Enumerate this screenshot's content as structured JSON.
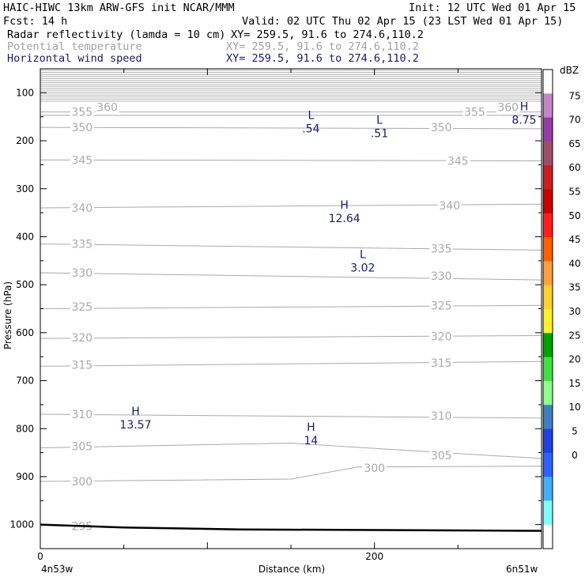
{
  "header": {
    "title_left": "HAIC-HIWC 13km ARW-GFS init   NCAR/MMM",
    "init": "Init: 12 UTC Wed 01 Apr 15",
    "fcst": "Fcst:    14 h",
    "valid": "Valid: 02 UTC Thu 02 Apr 15 (23 LST Wed 01 Apr 15)",
    "field1": "Radar reflectivity (lamda = 10 cm)",
    "field1_xy": "XY= 259.5, 91.6 to 274.6,110.2",
    "field2": "Potential temperature",
    "field2_xy": "XY= 259.5, 91.6 to 274.6,110.2",
    "field3": "Horizontal wind speed",
    "field3_xy": "XY= 259.5, 91.6 to 274.6,110.2"
  },
  "chart_data": {
    "type": "cross-section",
    "ylabel": "Pressure (hPa)",
    "xlabel": "Distance (km)",
    "x_left_label": "4n53w",
    "x_right_label": "6n51w",
    "xlim": [
      0,
      300
    ],
    "ylim": [
      1050,
      50
    ],
    "y_ticks": [
      100,
      200,
      300,
      400,
      500,
      600,
      700,
      800,
      900,
      1000
    ],
    "x_ticks": [
      0,
      200
    ],
    "colorbar": {
      "unit": "dBZ",
      "levels": [
        "75",
        "70",
        "65",
        "60",
        "55",
        "50",
        "45",
        "40",
        "35",
        "30",
        "25",
        "20",
        "15",
        "10",
        "5",
        "0"
      ],
      "colors": [
        "#ffffff",
        "#c586c8",
        "#963ca5",
        "#a04d6a",
        "#c81e1e",
        "#c80000",
        "#ff1e1e",
        "#ff6000",
        "#ffa040",
        "#ffd030",
        "#fff030",
        "#00a000",
        "#40e040",
        "#90ff90",
        "#4080c0",
        "#2040e0",
        "#3060ff",
        "#40b0ff",
        "#80ffff",
        "#ffffff"
      ]
    },
    "theta_contours": [
      {
        "label": "360",
        "points": [
          [
            0,
            140
          ],
          [
            300,
            140
          ]
        ],
        "labels": [
          [
            40,
            130
          ],
          [
            280,
            130
          ]
        ]
      },
      {
        "label": "355",
        "points": [
          [
            0,
            147
          ],
          [
            300,
            147
          ]
        ],
        "labels": [
          [
            25,
            140
          ],
          [
            260,
            140
          ]
        ]
      },
      {
        "label": "350",
        "points": [
          [
            0,
            172
          ],
          [
            300,
            175
          ]
        ],
        "labels": [
          [
            25,
            172
          ],
          [
            240,
            172
          ]
        ]
      },
      {
        "label": "345",
        "points": [
          [
            0,
            240
          ],
          [
            300,
            242
          ]
        ],
        "labels": [
          [
            25,
            240
          ],
          [
            250,
            242
          ]
        ]
      },
      {
        "label": "340",
        "points": [
          [
            0,
            340
          ],
          [
            300,
            332
          ]
        ],
        "labels": [
          [
            25,
            340
          ],
          [
            245,
            335
          ]
        ]
      },
      {
        "label": "335",
        "points": [
          [
            0,
            415
          ],
          [
            300,
            428
          ]
        ],
        "labels": [
          [
            25,
            415
          ],
          [
            240,
            425
          ]
        ]
      },
      {
        "label": "330",
        "points": [
          [
            0,
            475
          ],
          [
            300,
            490
          ]
        ],
        "labels": [
          [
            25,
            475
          ],
          [
            240,
            482
          ]
        ]
      },
      {
        "label": "325",
        "points": [
          [
            0,
            550
          ],
          [
            300,
            543
          ]
        ],
        "labels": [
          [
            25,
            546
          ],
          [
            240,
            543
          ]
        ]
      },
      {
        "label": "320",
        "points": [
          [
            0,
            612
          ],
          [
            300,
            606
          ]
        ],
        "labels": [
          [
            25,
            610
          ],
          [
            240,
            608
          ]
        ]
      },
      {
        "label": "315",
        "points": [
          [
            0,
            670
          ],
          [
            300,
            660
          ]
        ],
        "labels": [
          [
            25,
            667
          ],
          [
            240,
            663
          ]
        ]
      },
      {
        "label": "310",
        "points": [
          [
            0,
            770
          ],
          [
            300,
            778
          ]
        ],
        "labels": [
          [
            25,
            770
          ],
          [
            240,
            773
          ]
        ]
      },
      {
        "label": "305",
        "points": [
          [
            0,
            840
          ],
          [
            150,
            830
          ],
          [
            250,
            852
          ],
          [
            300,
            862
          ]
        ],
        "labels": [
          [
            25,
            837
          ],
          [
            240,
            856
          ]
        ]
      },
      {
        "label": "300",
        "points": [
          [
            0,
            910
          ],
          [
            150,
            905
          ],
          [
            190,
            880
          ],
          [
            300,
            878
          ]
        ],
        "labels": [
          [
            25,
            910
          ],
          [
            200,
            882
          ]
        ]
      },
      {
        "label": "295",
        "points": [],
        "labels": [
          [
            25,
            1003
          ]
        ]
      }
    ],
    "terrain": [
      [
        0,
        1000
      ],
      [
        50,
        1006
      ],
      [
        120,
        1010
      ],
      [
        300,
        1013
      ]
    ],
    "extrema": [
      {
        "type": "L",
        "value": ".54",
        "x": 162,
        "p": 168
      },
      {
        "type": "L",
        "value": ".51",
        "x": 203,
        "p": 178
      },
      {
        "type": "H",
        "value": "8.75",
        "x": 300,
        "p": 150
      },
      {
        "type": "H",
        "value": "12.64",
        "x": 182,
        "p": 355
      },
      {
        "type": "L",
        "value": "3.02",
        "x": 193,
        "p": 458
      },
      {
        "type": "H",
        "value": "13.57",
        "x": 57,
        "p": 785
      },
      {
        "type": "H",
        "value": "14",
        "x": 162,
        "p": 818
      }
    ]
  }
}
